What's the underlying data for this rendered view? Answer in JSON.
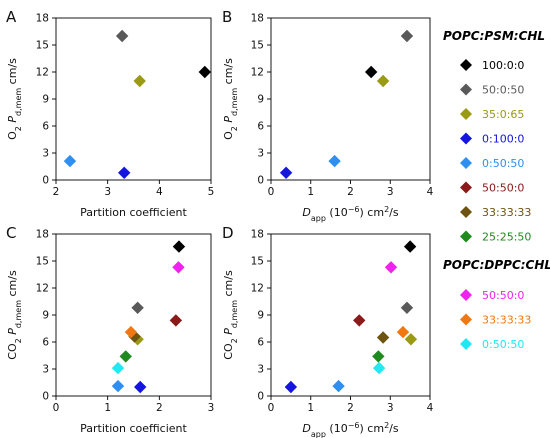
{
  "colors": {
    "black": "#000000",
    "darkgray": "#595959",
    "olive": "#9a9a14",
    "blue": "#1515e0",
    "skyblue": "#2f8ff0",
    "darkred": "#8b1a1a",
    "brown": "#6e5410",
    "green": "#1f8a1f",
    "magenta": "#f022f0",
    "orange": "#f07812",
    "cyan": "#22e8f4"
  },
  "legend": {
    "group1_title": "POPC:PSM:CHL",
    "group1_items": [
      {
        "label": "100:0:0",
        "color": "#000000"
      },
      {
        "label": "50:0:50",
        "color": "#595959"
      },
      {
        "label": "35:0:65",
        "color": "#9a9a14"
      },
      {
        "label": "0:100:0",
        "color": "#1515e0"
      },
      {
        "label": "0:50:50",
        "color": "#2f8ff0"
      },
      {
        "label": "50:50:0",
        "color": "#8b1a1a"
      },
      {
        "label": "33:33:33",
        "color": "#6e5410"
      },
      {
        "label": "25:25:50",
        "color": "#1f8a1f"
      }
    ],
    "group2_title": "POPC:DPPC:CHL",
    "group2_items": [
      {
        "label": "50:50:0",
        "color": "#f022f0"
      },
      {
        "label": "33:33:33",
        "color": "#f07812"
      },
      {
        "label": "0:50:50",
        "color": "#22e8f4"
      }
    ]
  },
  "chart_data": [
    {
      "panel": "A",
      "type": "scatter",
      "xlabel": "Partition coefficient",
      "ylabel": "O2 P d,mem cm/s",
      "xlim": [
        2,
        5
      ],
      "ylim": [
        0,
        18
      ],
      "xticks": [
        "2",
        "3",
        "4",
        "5"
      ],
      "yticks": [
        "0",
        "3",
        "6",
        "9",
        "12",
        "15",
        "18"
      ],
      "points": [
        {
          "x": 4.88,
          "y": 12.0,
          "color": "#000000"
        },
        {
          "x": 3.28,
          "y": 16.0,
          "color": "#595959"
        },
        {
          "x": 3.62,
          "y": 11.0,
          "color": "#9a9a14"
        },
        {
          "x": 3.32,
          "y": 0.8,
          "color": "#1515e0"
        },
        {
          "x": 2.27,
          "y": 2.1,
          "color": "#2f8ff0"
        }
      ]
    },
    {
      "panel": "B",
      "type": "scatter",
      "xlabel": "D app (10−6) cm2/s",
      "ylabel": "O2 P d,mem cm/s",
      "xlim": [
        0,
        4
      ],
      "ylim": [
        0,
        18
      ],
      "xticks": [
        "0",
        "1",
        "2",
        "3",
        "4"
      ],
      "yticks": [
        "0",
        "3",
        "6",
        "9",
        "12",
        "15",
        "18"
      ],
      "points": [
        {
          "x": 2.52,
          "y": 12.0,
          "color": "#000000"
        },
        {
          "x": 3.42,
          "y": 16.0,
          "color": "#595959"
        },
        {
          "x": 2.82,
          "y": 11.0,
          "color": "#9a9a14"
        },
        {
          "x": 0.38,
          "y": 0.8,
          "color": "#1515e0"
        },
        {
          "x": 1.6,
          "y": 2.1,
          "color": "#2f8ff0"
        }
      ]
    },
    {
      "panel": "C",
      "type": "scatter",
      "xlabel": "Partition coefficient",
      "ylabel": "CO2 P d,mem cm/s",
      "xlim": [
        0,
        3
      ],
      "ylim": [
        0,
        18
      ],
      "xticks": [
        "0",
        "1",
        "2",
        "3"
      ],
      "yticks": [
        "0",
        "3",
        "6",
        "9",
        "12",
        "15",
        "18"
      ],
      "points": [
        {
          "x": 2.38,
          "y": 16.6,
          "color": "#000000"
        },
        {
          "x": 1.58,
          "y": 9.8,
          "color": "#595959"
        },
        {
          "x": 1.58,
          "y": 6.3,
          "color": "#9a9a14"
        },
        {
          "x": 1.63,
          "y": 1.0,
          "color": "#1515e0"
        },
        {
          "x": 1.2,
          "y": 1.1,
          "color": "#2f8ff0"
        },
        {
          "x": 2.32,
          "y": 8.4,
          "color": "#8b1a1a"
        },
        {
          "x": 1.52,
          "y": 6.6,
          "color": "#6e5410"
        },
        {
          "x": 1.35,
          "y": 4.4,
          "color": "#1f8a1f"
        },
        {
          "x": 2.37,
          "y": 14.3,
          "color": "#f022f0"
        },
        {
          "x": 1.45,
          "y": 7.1,
          "color": "#f07812"
        },
        {
          "x": 1.2,
          "y": 3.1,
          "color": "#22e8f4"
        }
      ]
    },
    {
      "panel": "D",
      "type": "scatter",
      "xlabel": "D app (10−6) cm2/s",
      "ylabel": "CO2 P d,mem cm/s",
      "xlim": [
        0,
        4
      ],
      "ylim": [
        0,
        18
      ],
      "xticks": [
        "0",
        "1",
        "2",
        "3",
        "4"
      ],
      "yticks": [
        "0",
        "3",
        "6",
        "9",
        "12",
        "15",
        "18"
      ],
      "points": [
        {
          "x": 3.5,
          "y": 16.6,
          "color": "#000000"
        },
        {
          "x": 3.42,
          "y": 9.8,
          "color": "#595959"
        },
        {
          "x": 3.52,
          "y": 6.3,
          "color": "#9a9a14"
        },
        {
          "x": 0.5,
          "y": 1.0,
          "color": "#1515e0"
        },
        {
          "x": 1.7,
          "y": 1.1,
          "color": "#2f8ff0"
        },
        {
          "x": 2.22,
          "y": 8.4,
          "color": "#8b1a1a"
        },
        {
          "x": 2.82,
          "y": 6.5,
          "color": "#6e5410"
        },
        {
          "x": 2.7,
          "y": 4.4,
          "color": "#1f8a1f"
        },
        {
          "x": 3.02,
          "y": 14.3,
          "color": "#f022f0"
        },
        {
          "x": 3.32,
          "y": 7.1,
          "color": "#f07812"
        },
        {
          "x": 2.72,
          "y": 3.1,
          "color": "#22e8f4"
        }
      ]
    }
  ]
}
